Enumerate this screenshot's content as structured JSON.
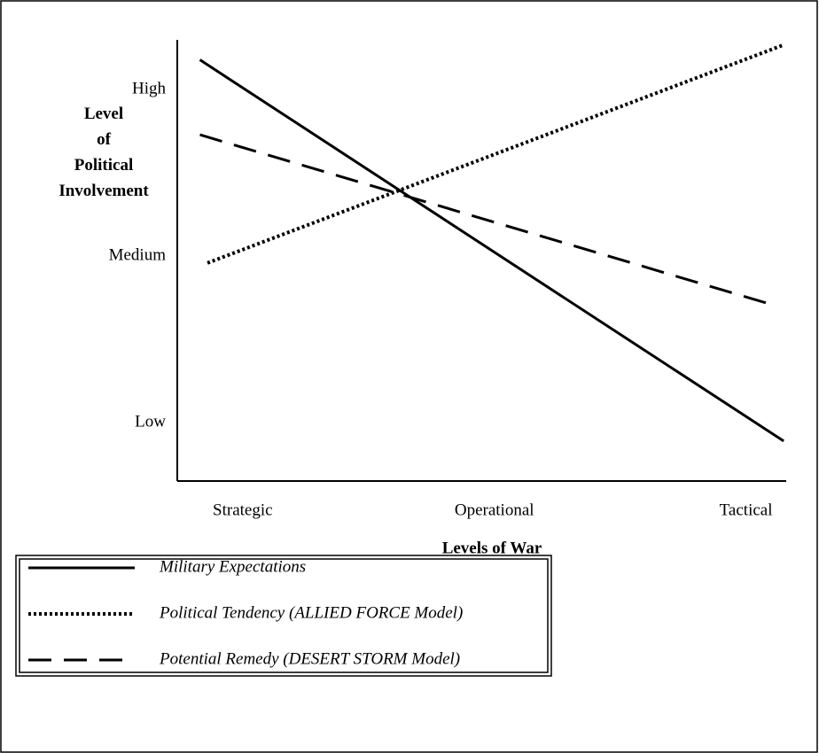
{
  "chart_data": {
    "type": "line",
    "xlabel": "Levels of War",
    "ylabel": "Level of Political Involvement",
    "xlim": [
      -0.26,
      2.16
    ],
    "xticks": [
      {
        "value": 0,
        "label": "Strategic"
      },
      {
        "value": 1,
        "label": "Operational"
      },
      {
        "value": 2,
        "label": "Tactical"
      }
    ],
    "ylim": [
      0.65,
      3.3
    ],
    "yticks": [
      {
        "value": 1,
        "label": "Low"
      },
      {
        "value": 2,
        "label": "Medium"
      },
      {
        "value": 3,
        "label": "High"
      }
    ],
    "series": [
      {
        "name": "Military Expectations",
        "color": "#000000",
        "style": "solid",
        "x": [
          -0.17,
          0.63,
          2.15
        ],
        "values": [
          3.18,
          2.39,
          0.89
        ]
      },
      {
        "name": "Political Tendency (ALLIED FORCE Model)",
        "color": "#000000",
        "style": "dotted",
        "x": [
          -0.14,
          2.15
        ],
        "values": [
          1.96,
          3.27
        ]
      },
      {
        "name": "Potential Remedy (DESERT STORM Model)",
        "color": "#000000",
        "style": "dashed",
        "x": [
          -0.17,
          2.08
        ],
        "values": [
          2.73,
          1.72
        ]
      }
    ]
  }
}
